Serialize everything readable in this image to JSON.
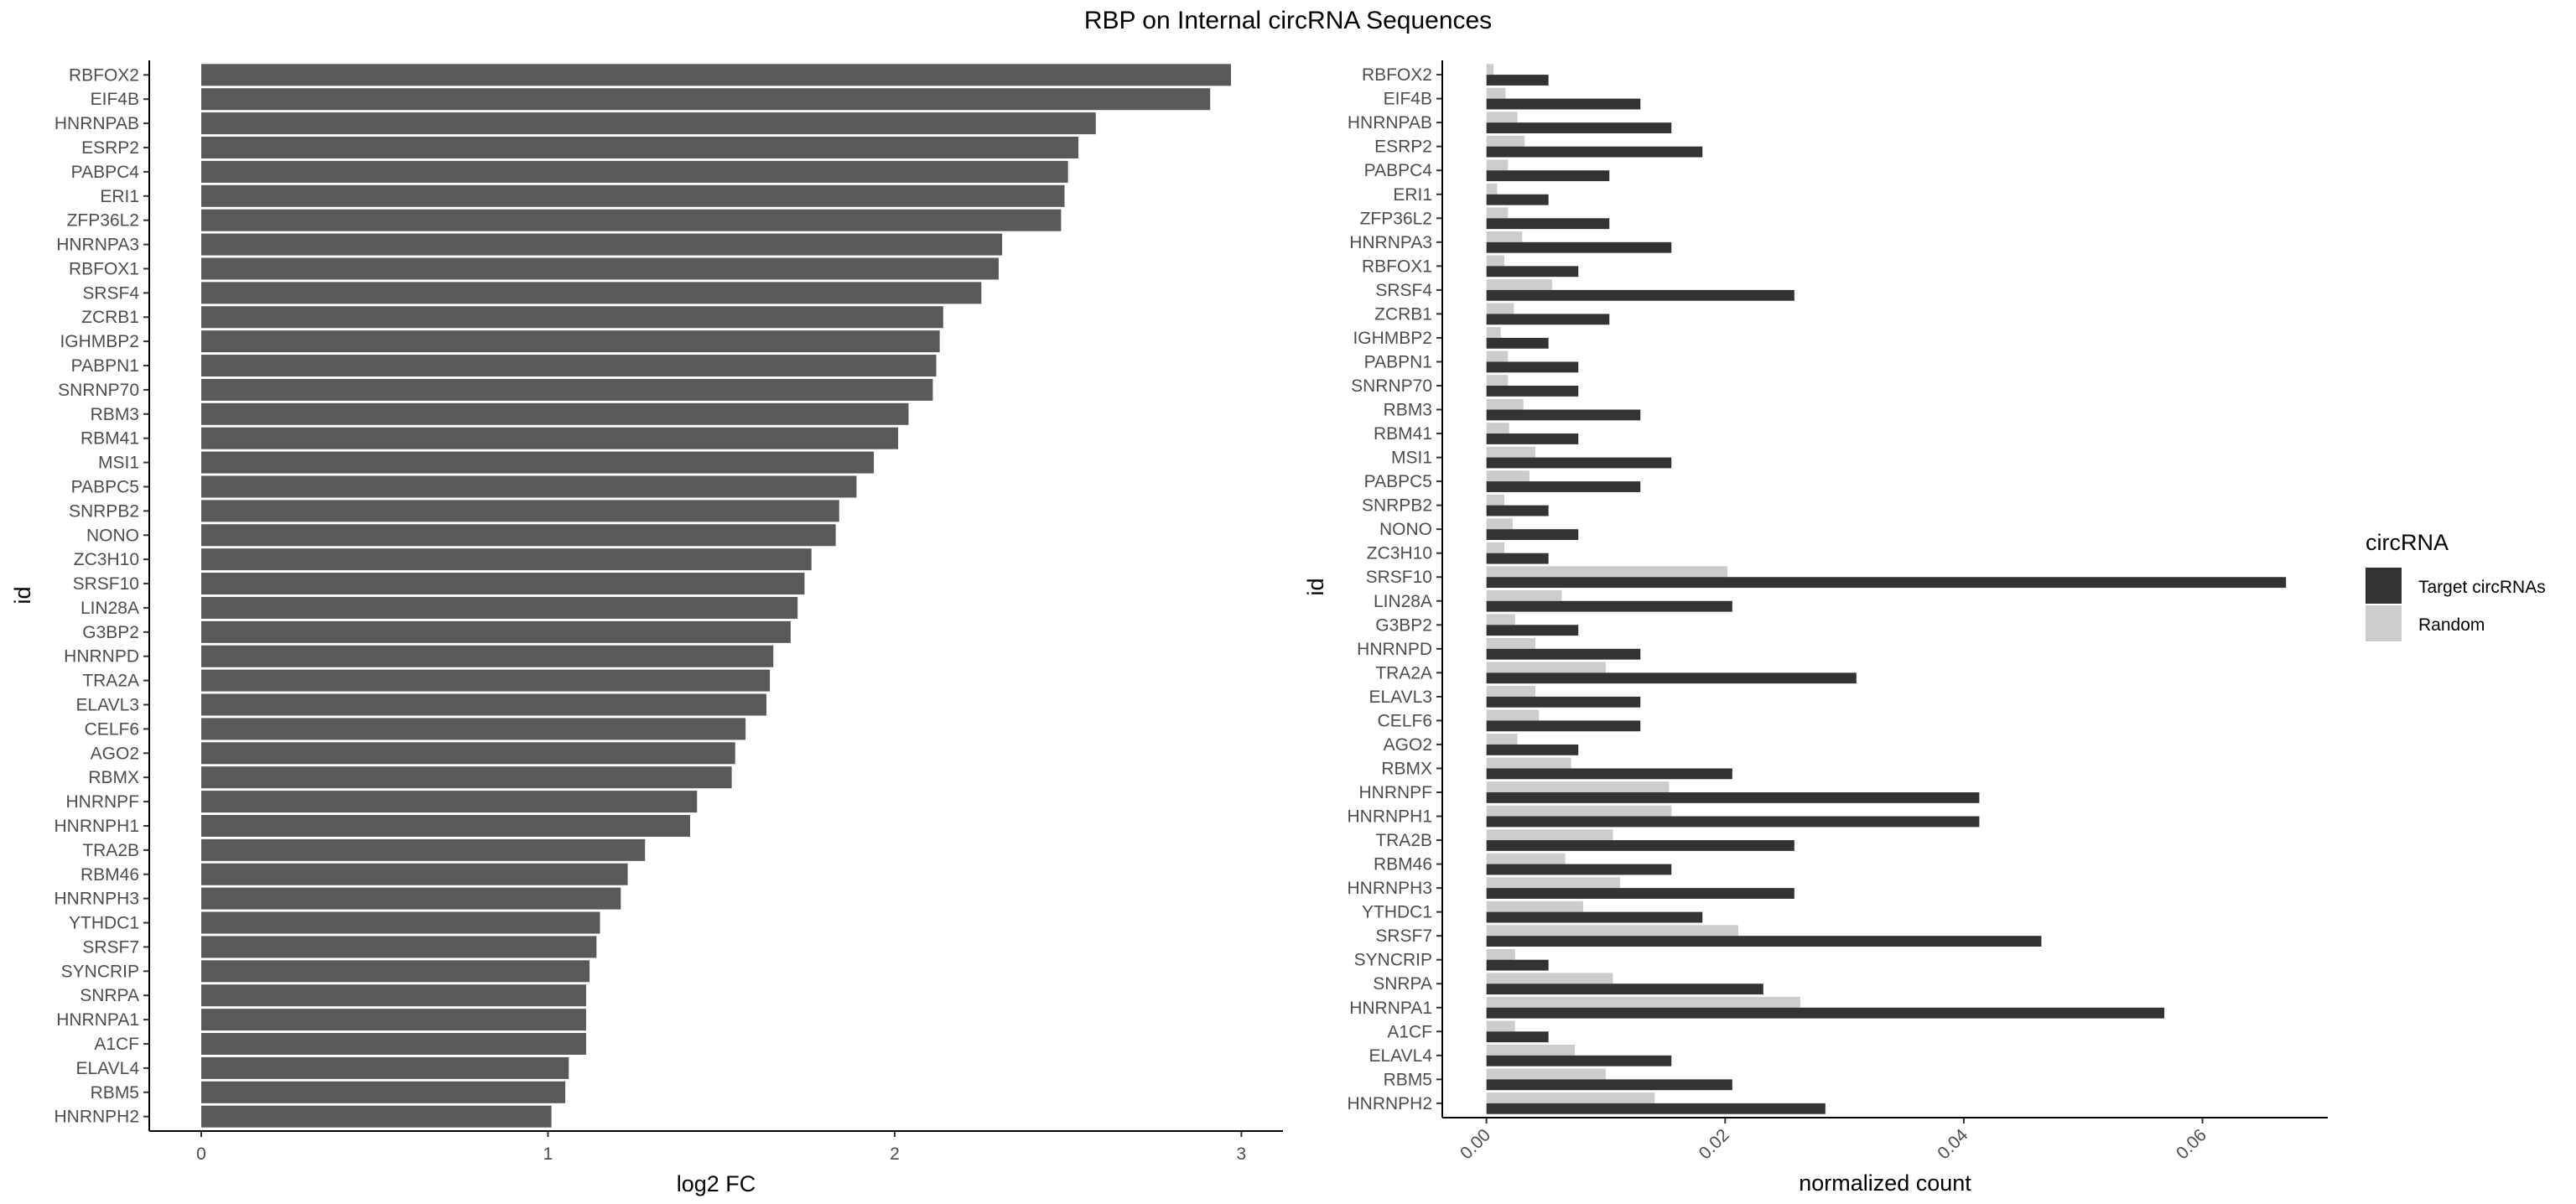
{
  "title": "RBP on Internal circRNA Sequences",
  "colors": {
    "fc_bar": "#595959",
    "target": "#333333",
    "random": "#cccccc",
    "axis": "#000000",
    "tick_text": "#4d4d4d"
  },
  "chart_data": [
    {
      "type": "bar",
      "orientation": "horizontal",
      "xlabel": "log2 FC",
      "ylabel": "id",
      "xlim": [
        -0.15,
        3.12
      ],
      "xticks": [
        0,
        1,
        2,
        3
      ],
      "xtick_labels": [
        "0",
        "1",
        "2",
        "3"
      ],
      "categories": [
        "RBFOX2",
        "EIF4B",
        "HNRNPAB",
        "ESRP2",
        "PABPC4",
        "ERI1",
        "ZFP36L2",
        "HNRNPA3",
        "RBFOX1",
        "SRSF4",
        "ZCRB1",
        "IGHMBP2",
        "PABPN1",
        "SNRNP70",
        "RBM3",
        "RBM41",
        "MSI1",
        "PABPC5",
        "SNRPB2",
        "NONO",
        "ZC3H10",
        "SRSF10",
        "LIN28A",
        "G3BP2",
        "HNRNPD",
        "TRA2A",
        "ELAVL3",
        "CELF6",
        "AGO2",
        "RBMX",
        "HNRNPF",
        "HNRNPH1",
        "TRA2B",
        "RBM46",
        "HNRNPH3",
        "YTHDC1",
        "SRSF7",
        "SYNCRIP",
        "SNRPA",
        "HNRNPA1",
        "A1CF",
        "ELAVL4",
        "RBM5",
        "HNRNPH2"
      ],
      "values": [
        2.97,
        2.91,
        2.58,
        2.53,
        2.5,
        2.49,
        2.48,
        2.31,
        2.3,
        2.25,
        2.14,
        2.13,
        2.12,
        2.11,
        2.04,
        2.01,
        1.94,
        1.89,
        1.84,
        1.83,
        1.76,
        1.74,
        1.72,
        1.7,
        1.65,
        1.64,
        1.63,
        1.57,
        1.54,
        1.53,
        1.43,
        1.41,
        1.28,
        1.23,
        1.21,
        1.15,
        1.14,
        1.12,
        1.11,
        1.11,
        1.11,
        1.06,
        1.05,
        1.01
      ],
      "grid": false
    },
    {
      "type": "bar",
      "orientation": "horizontal",
      "grouped": true,
      "xlabel": "normalized count",
      "ylabel": "id",
      "xlim": [
        -0.0037,
        0.0705
      ],
      "xticks": [
        0,
        0.02,
        0.04,
        0.06
      ],
      "xtick_labels": [
        "0.00",
        "0.02",
        "0.04",
        "0.06"
      ],
      "categories": [
        "RBFOX2",
        "EIF4B",
        "HNRNPAB",
        "ESRP2",
        "PABPC4",
        "ERI1",
        "ZFP36L2",
        "HNRNPA3",
        "RBFOX1",
        "SRSF4",
        "ZCRB1",
        "IGHMBP2",
        "PABPN1",
        "SNRNP70",
        "RBM3",
        "RBM41",
        "MSI1",
        "PABPC5",
        "SNRPB2",
        "NONO",
        "ZC3H10",
        "SRSF10",
        "LIN28A",
        "G3BP2",
        "HNRNPD",
        "TRA2A",
        "ELAVL3",
        "CELF6",
        "AGO2",
        "RBMX",
        "HNRNPF",
        "HNRNPH1",
        "TRA2B",
        "RBM46",
        "HNRNPH3",
        "YTHDC1",
        "SRSF7",
        "SYNCRIP",
        "SNRPA",
        "HNRNPA1",
        "A1CF",
        "ELAVL4",
        "RBM5",
        "HNRNPH2"
      ],
      "series": [
        {
          "name": "Target circRNAs",
          "values": [
            0.0052,
            0.0129,
            0.0155,
            0.0181,
            0.0103,
            0.0052,
            0.0103,
            0.0155,
            0.0077,
            0.0258,
            0.0103,
            0.0052,
            0.0077,
            0.0077,
            0.0129,
            0.0077,
            0.0155,
            0.0129,
            0.0052,
            0.0077,
            0.0052,
            0.067,
            0.0206,
            0.0077,
            0.0129,
            0.031,
            0.0129,
            0.0129,
            0.0077,
            0.0206,
            0.0413,
            0.0413,
            0.0258,
            0.0155,
            0.0258,
            0.0181,
            0.0465,
            0.0052,
            0.0232,
            0.0568,
            0.0052,
            0.0155,
            0.0206,
            0.0284
          ]
        },
        {
          "name": "Random",
          "values": [
            0.0006,
            0.0016,
            0.0026,
            0.0032,
            0.0018,
            0.0009,
            0.0018,
            0.003,
            0.0015,
            0.0055,
            0.0023,
            0.0012,
            0.0018,
            0.0018,
            0.0031,
            0.0019,
            0.0041,
            0.0036,
            0.0015,
            0.0022,
            0.0015,
            0.0202,
            0.0063,
            0.0024,
            0.0041,
            0.01,
            0.0041,
            0.0044,
            0.0026,
            0.0071,
            0.0153,
            0.0155,
            0.0106,
            0.0066,
            0.0112,
            0.0081,
            0.0211,
            0.0024,
            0.0106,
            0.0263,
            0.0024,
            0.0074,
            0.01,
            0.0141
          ]
        }
      ],
      "legend": {
        "title": "circRNA",
        "position": "right",
        "entries": [
          "Target circRNAs",
          "Random"
        ]
      },
      "grid": false
    }
  ]
}
